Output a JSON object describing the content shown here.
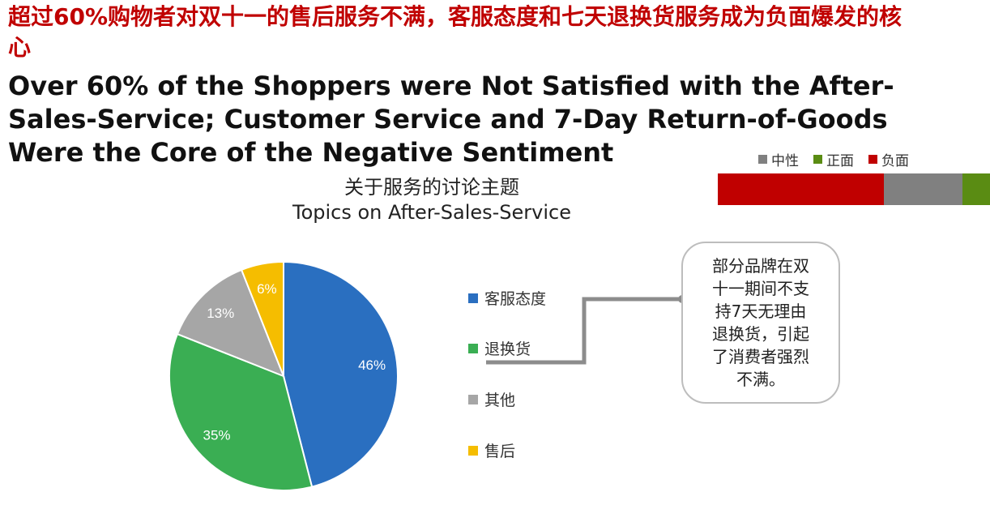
{
  "title_cn": "超过60%购物者对双十一的售后服务不满，客服态度和七天退换货服务成为负面爆发的核心",
  "title_en": "Over 60% of the Shoppers were Not Satisfied with the After-Sales-Service; Customer Service and 7-Day Return-of-Goods Were the Core of the Negative Sentiment",
  "sentiment": {
    "legend": [
      {
        "label": "中性",
        "color": "#808080"
      },
      {
        "label": "正面",
        "color": "#5a8c13"
      },
      {
        "label": "负面",
        "color": "#c00000"
      }
    ],
    "bar": [
      {
        "name": "负面",
        "fraction": 0.61,
        "color": "#c00000"
      },
      {
        "name": "中性",
        "fraction": 0.29,
        "color": "#808080"
      },
      {
        "name": "正面",
        "fraction": 0.1,
        "color": "#5a8c13"
      }
    ]
  },
  "chart_data": {
    "type": "pie",
    "title": "关于服务的讨论主题",
    "subtitle": "Topics on After-Sales-Service",
    "categories": [
      "客服态度",
      "退换货",
      "其他",
      "售后"
    ],
    "values": [
      46,
      35,
      13,
      6
    ],
    "labels": [
      "46%",
      "35%",
      "13%",
      "6%"
    ],
    "colors": [
      "#2a6fc0",
      "#3aae53",
      "#a6a6a6",
      "#f5bd00"
    ],
    "start": "12 o'clock, clockwise",
    "legend_position": "right"
  },
  "callout": {
    "text_lines": [
      "部分品牌在双",
      "十一期间不支",
      "持7天无理由",
      "退换货，引起",
      "了消费者强烈",
      "不满。"
    ]
  }
}
